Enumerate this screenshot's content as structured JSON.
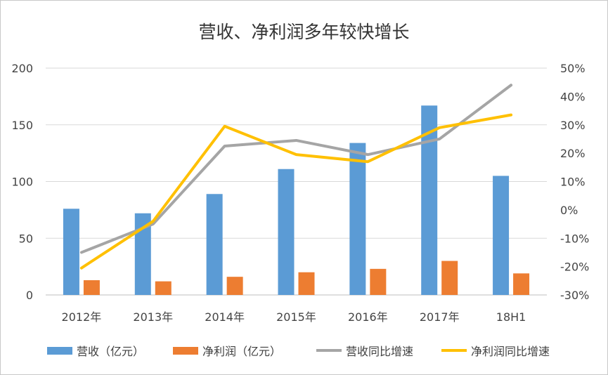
{
  "chart_data": {
    "type": "bar+line",
    "title": "营收、净利润多年较快增长",
    "categories": [
      "2012年",
      "2013年",
      "2014年",
      "2015年",
      "2016年",
      "2017年",
      "18H1"
    ],
    "bar_series": [
      {
        "name": "营收（亿元）",
        "color": "#5B9BD5",
        "values": [
          76,
          72,
          89,
          111,
          134,
          167,
          105
        ]
      },
      {
        "name": "净利润（亿元）",
        "color": "#ED7D31",
        "values": [
          13,
          12,
          16,
          20,
          23,
          30,
          19
        ]
      }
    ],
    "line_series": [
      {
        "name": "营收同比增速",
        "color": "#A5A5A5",
        "values": [
          -15,
          -5,
          22.5,
          24.5,
          19.5,
          25,
          44
        ]
      },
      {
        "name": "净利润同比增速",
        "color": "#FFC000",
        "values": [
          -20.5,
          -4,
          29.5,
          19.5,
          17,
          29,
          33.5
        ]
      }
    ],
    "y_left": {
      "min": 0,
      "max": 200,
      "ticks": [
        0,
        50,
        100,
        150,
        200
      ],
      "tick_labels": [
        "0",
        "50",
        "100",
        "150",
        "200"
      ]
    },
    "y_right": {
      "min": -30,
      "max": 50,
      "ticks": [
        -30,
        -20,
        -10,
        0,
        10,
        20,
        30,
        40,
        50
      ],
      "tick_labels": [
        "-30%",
        "-20%",
        "-10%",
        "0%",
        "10%",
        "20%",
        "30%",
        "40%",
        "50%"
      ]
    },
    "gridlines": true,
    "legend_position": "bottom"
  }
}
